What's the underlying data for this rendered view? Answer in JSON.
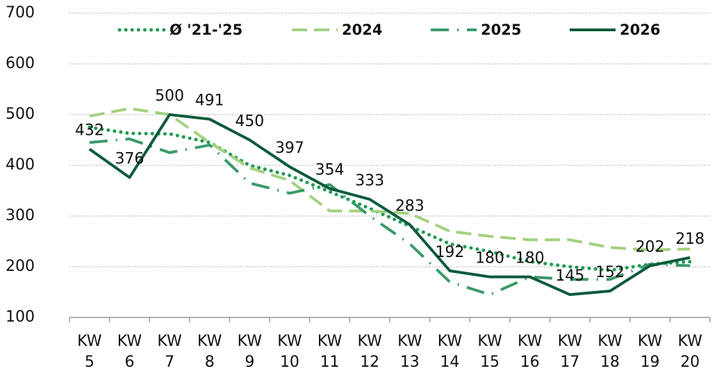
{
  "chart_data": {
    "type": "line",
    "categories": [
      "KW 5",
      "KW 6",
      "KW 7",
      "KW 8",
      "KW 9",
      "KW 10",
      "KW 11",
      "KW 12",
      "KW 13",
      "KW 14",
      "KW 15",
      "KW 16",
      "KW 17",
      "KW 18",
      "KW 19",
      "KW 20"
    ],
    "series": [
      {
        "name": "Ø '21-'25",
        "color": "#1e9b50",
        "style": "dotted",
        "values": [
          475,
          463,
          462,
          445,
          400,
          380,
          348,
          315,
          280,
          245,
          230,
          210,
          200,
          193,
          205,
          210
        ]
      },
      {
        "name": "2024",
        "color": "#a3d17f",
        "style": "dashed",
        "values": [
          497,
          512,
          500,
          445,
          395,
          370,
          310,
          310,
          305,
          270,
          260,
          253,
          253,
          238,
          233,
          235
        ]
      },
      {
        "name": "2025",
        "color": "#3a9a6a",
        "style": "dashdot",
        "values": [
          445,
          452,
          425,
          440,
          365,
          345,
          362,
          300,
          245,
          170,
          145,
          180,
          175,
          175,
          205,
          202
        ]
      },
      {
        "name": "2026",
        "color": "#0d5a3c",
        "style": "solid",
        "values": [
          432,
          376,
          500,
          491,
          450,
          397,
          354,
          333,
          283,
          192,
          180,
          180,
          145,
          152,
          202,
          218
        ],
        "data_labels": true
      }
    ],
    "ylim": [
      100,
      700
    ],
    "yticks": [
      100,
      200,
      300,
      400,
      500,
      600,
      700
    ],
    "grid": true,
    "legend": "top"
  }
}
